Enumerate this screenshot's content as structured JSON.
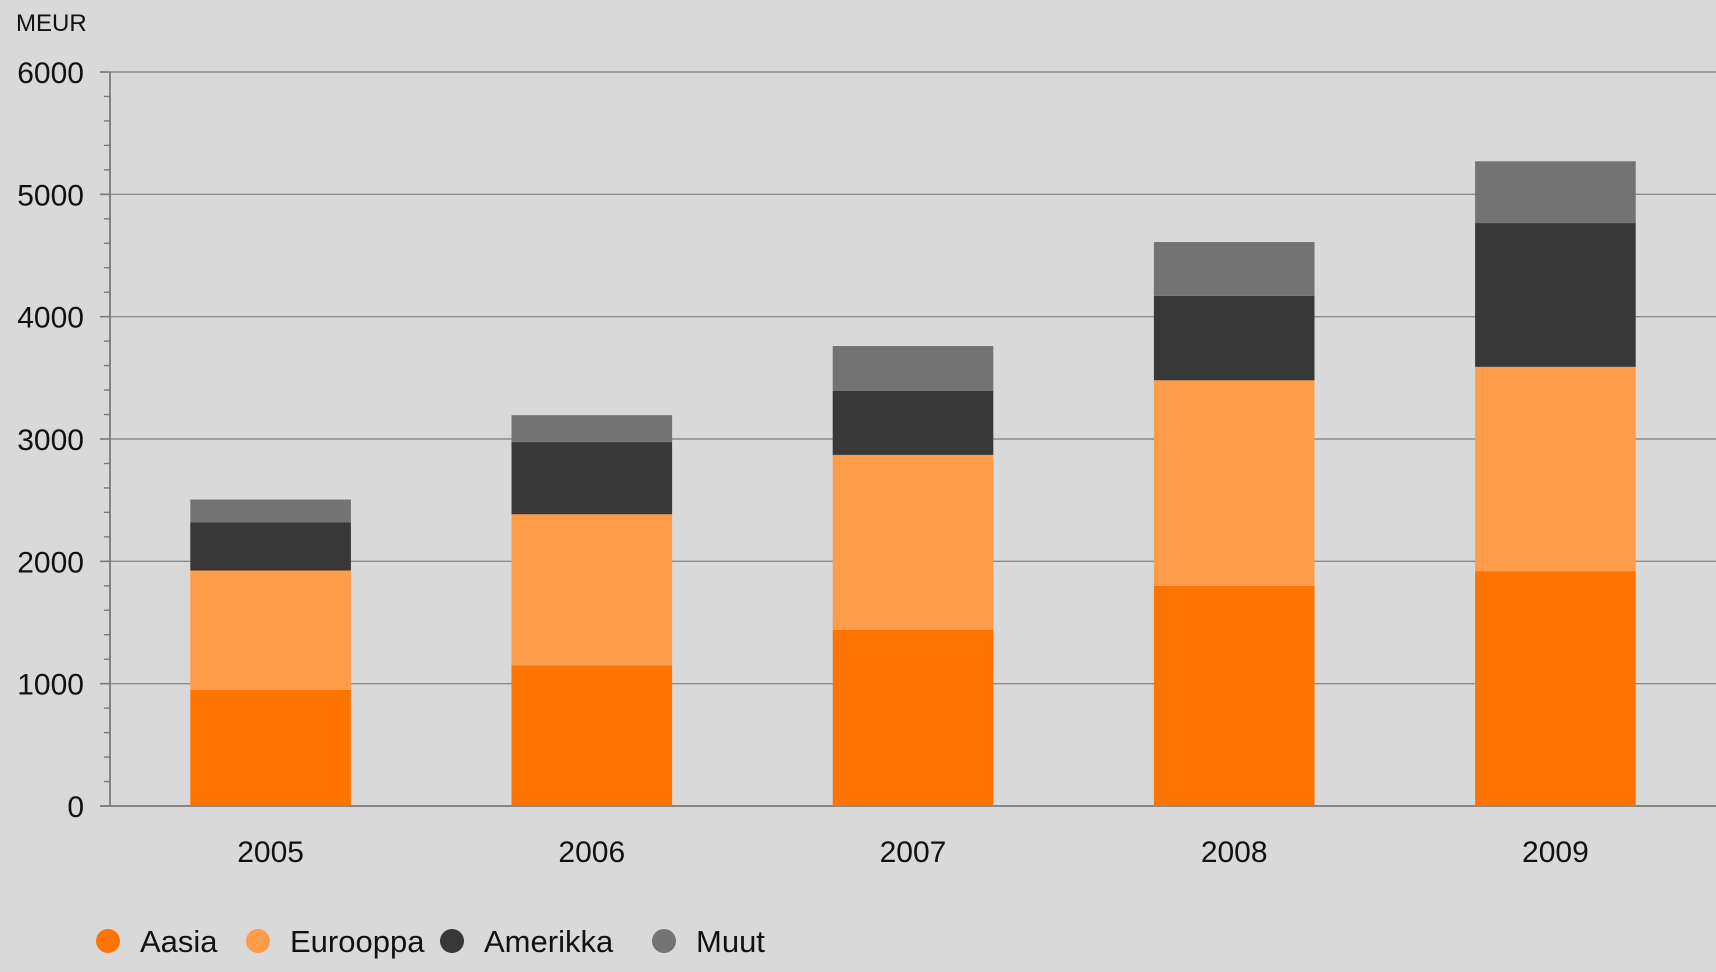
{
  "chart_data": {
    "type": "bar",
    "stacked": true,
    "title": "",
    "xlabel": "",
    "ylabel": "MEUR",
    "ylim": [
      0,
      6000
    ],
    "yticks": [
      0,
      1000,
      2000,
      3000,
      4000,
      5000,
      6000
    ],
    "grid": true,
    "legend": "bottom-left",
    "categories": [
      "2005",
      "2006",
      "2007",
      "2008",
      "2009"
    ],
    "series": [
      {
        "name": "Aasia",
        "color": "#ff7300",
        "values": [
          950,
          1150,
          1440,
          1800,
          1920
        ]
      },
      {
        "name": "Eurooppa",
        "color": "#ff9c4a",
        "values": [
          975,
          1235,
          1430,
          1680,
          1670
        ]
      },
      {
        "name": "Amerikka",
        "color": "#383838",
        "values": [
          395,
          590,
          525,
          690,
          1175
        ]
      },
      {
        "name": "Muut",
        "color": "#737373",
        "values": [
          185,
          220,
          365,
          440,
          505
        ]
      }
    ]
  }
}
